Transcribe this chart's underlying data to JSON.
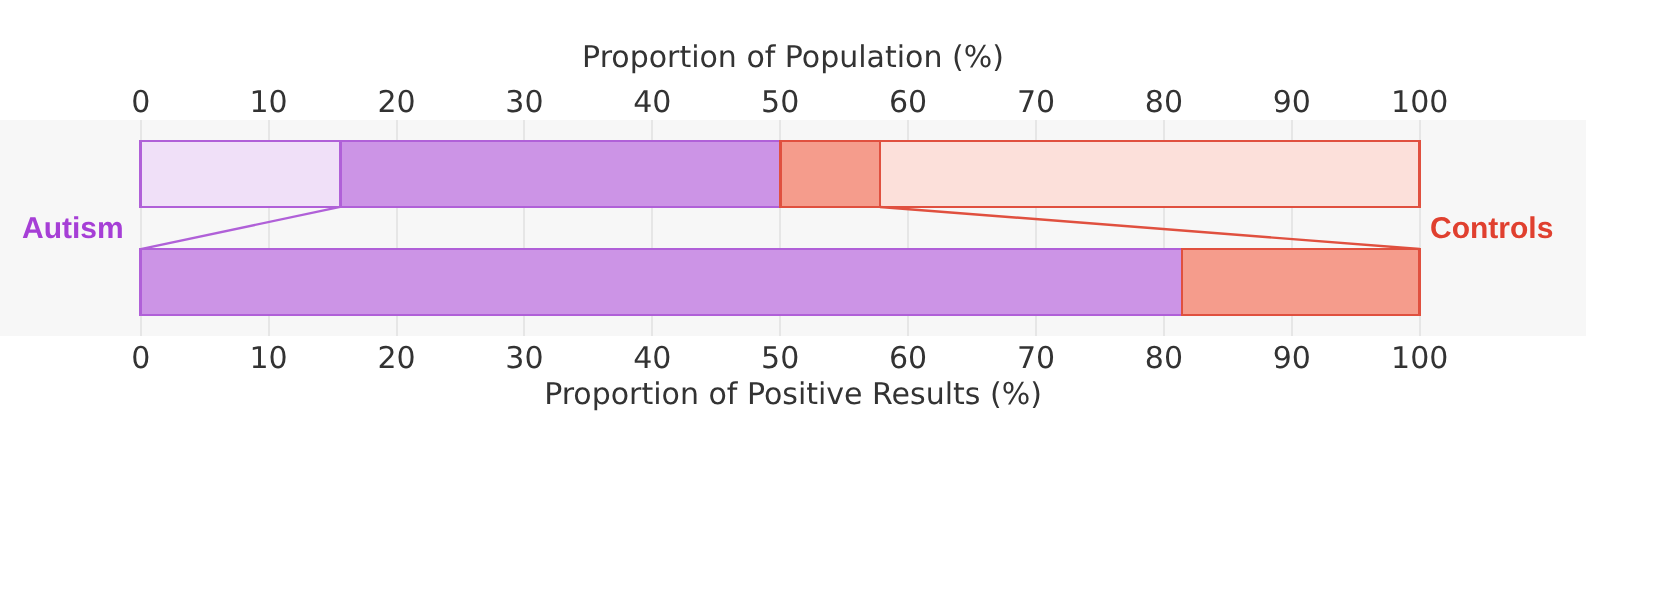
{
  "chart_data": {
    "type": "bar",
    "orientation": "horizontal",
    "stacked": true,
    "categories": [
      null,
      null
    ],
    "series": [
      {
        "color": "#f0e0f8",
        "values": [
          15.6,
          null
        ]
      },
      {
        "color": "#cc94e6",
        "values": [
          34.4,
          81.4
        ]
      },
      {
        "color": "#f59c8c",
        "values": [
          7.8,
          18.6
        ]
      },
      {
        "color": "#fce0da",
        "values": [
          42.2,
          null
        ]
      }
    ],
    "xlabel": "Proportion of Positive Results (%)",
    "x2label": "Proportion of Population (%)",
    "xlim": [
      -11,
      113
    ],
    "xticks": [
      0,
      10,
      20,
      30,
      40,
      50,
      60,
      70,
      80,
      90,
      100
    ],
    "x2lim": [
      -11,
      113
    ],
    "x2ticks": [
      0,
      10,
      20,
      30,
      40,
      50,
      60,
      70,
      80,
      90,
      100
    ],
    "annotations": [
      "Autism",
      "Controls"
    ],
    "grid": "x"
  }
}
